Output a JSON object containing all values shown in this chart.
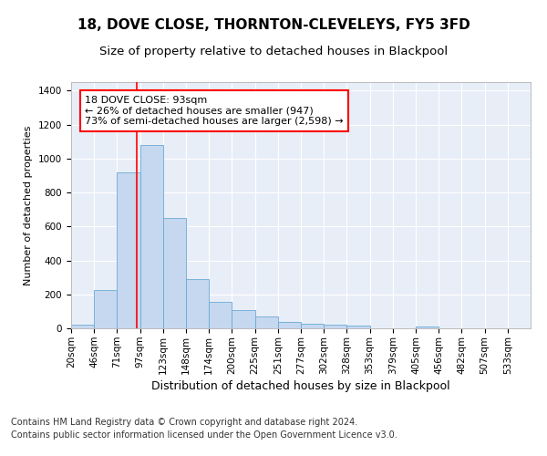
{
  "title": "18, DOVE CLOSE, THORNTON-CLEVELEYS, FY5 3FD",
  "subtitle": "Size of property relative to detached houses in Blackpool",
  "xlabel": "Distribution of detached houses by size in Blackpool",
  "ylabel": "Number of detached properties",
  "heights": [
    20,
    225,
    920,
    1080,
    650,
    290,
    155,
    105,
    70,
    40,
    25,
    20,
    15,
    0,
    0,
    10,
    0,
    0,
    0,
    0
  ],
  "tick_labels": [
    "20sqm",
    "46sqm",
    "71sqm",
    "97sqm",
    "123sqm",
    "148sqm",
    "174sqm",
    "200sqm",
    "225sqm",
    "251sqm",
    "277sqm",
    "302sqm",
    "328sqm",
    "353sqm",
    "379sqm",
    "405sqm",
    "456sqm",
    "482sqm",
    "507sqm",
    "533sqm"
  ],
  "bar_color": "#c5d8f0",
  "bar_edge_color": "#6aaad4",
  "vline_color": "red",
  "vline_x_bin": 3.5,
  "annotation_text": "18 DOVE CLOSE: 93sqm\n← 26% of detached houses are smaller (947)\n73% of semi-detached houses are larger (2,598) →",
  "annotation_box_color": "white",
  "annotation_box_edge": "red",
  "ylim": [
    0,
    1450
  ],
  "plot_bg": "#e8eef7",
  "footer1": "Contains HM Land Registry data © Crown copyright and database right 2024.",
  "footer2": "Contains public sector information licensed under the Open Government Licence v3.0.",
  "title_fontsize": 11,
  "subtitle_fontsize": 9.5,
  "xlabel_fontsize": 9,
  "ylabel_fontsize": 8,
  "tick_fontsize": 7.5,
  "annotation_fontsize": 8,
  "footer_fontsize": 7
}
